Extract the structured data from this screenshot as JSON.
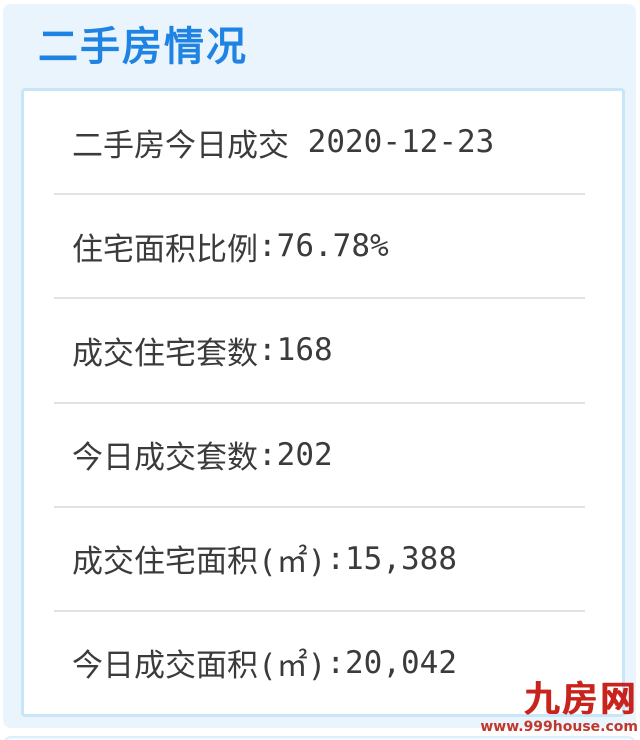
{
  "widget": {
    "title": "二手房情况"
  },
  "card": {
    "rows": [
      {
        "label": "二手房今日成交",
        "separator": " ",
        "value": "2020-12-23"
      },
      {
        "label": "住宅面积比例",
        "separator": ":",
        "value": "76.78%"
      },
      {
        "label": "成交住宅套数",
        "separator": ":",
        "value": "168"
      },
      {
        "label": "今日成交套数",
        "separator": ":",
        "value": "202"
      },
      {
        "label": "成交住宅面积(㎡)",
        "separator": ":",
        "value": "15,388"
      },
      {
        "label": "今日成交面积(㎡)",
        "separator": ":",
        "value": "20,042"
      }
    ]
  },
  "watermark": {
    "logo": "九房网",
    "url": "www.999house.com"
  },
  "colors": {
    "title_blue": "#1e83e2",
    "panel_bg": "#e9f4fc",
    "card_border": "#c7e6f7",
    "divider_gray": "#e2e2e2",
    "body_text": "#3b3b3b",
    "logo_red": "#c9231d"
  }
}
